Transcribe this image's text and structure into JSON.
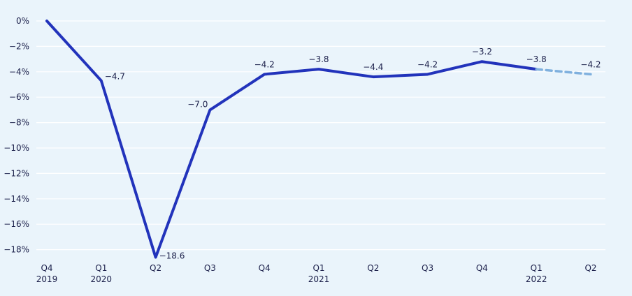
{
  "chart_data": {
    "type": "line",
    "title": "",
    "xlabel": "",
    "ylabel": "",
    "ylim": [
      -19,
      0
    ],
    "y_ticks": [
      0,
      -2,
      -4,
      -6,
      -8,
      -10,
      -12,
      -14,
      -16,
      -18
    ],
    "y_tick_labels": [
      "0%",
      "−2%",
      "−4%",
      "−6%",
      "−8%",
      "−10%",
      "−12%",
      "−14%",
      "−16%",
      "−18%"
    ],
    "categories": [
      {
        "q": "Q4",
        "year": "2019"
      },
      {
        "q": "Q1",
        "year": "2020"
      },
      {
        "q": "Q2",
        "year": ""
      },
      {
        "q": "Q3",
        "year": ""
      },
      {
        "q": "Q4",
        "year": ""
      },
      {
        "q": "Q1",
        "year": "2021"
      },
      {
        "q": "Q2",
        "year": ""
      },
      {
        "q": "Q3",
        "year": ""
      },
      {
        "q": "Q4",
        "year": ""
      },
      {
        "q": "Q1",
        "year": "2022"
      },
      {
        "q": "Q2",
        "year": ""
      }
    ],
    "series": [
      {
        "style": "solid",
        "color": "#2233bb",
        "values": [
          0,
          -4.7,
          -18.6,
          -7.0,
          -4.2,
          -3.8,
          -4.4,
          -4.2,
          -3.2,
          -3.8,
          null
        ]
      },
      {
        "style": "dashed",
        "color": "#7fb0de",
        "values": [
          null,
          null,
          null,
          null,
          null,
          null,
          null,
          null,
          null,
          -3.8,
          -4.2
        ]
      }
    ],
    "data_labels": [
      {
        "index": 1,
        "text": "−4.7"
      },
      {
        "index": 2,
        "text": "−18.6"
      },
      {
        "index": 3,
        "text": "−7.0"
      },
      {
        "index": 4,
        "text": "−4.2"
      },
      {
        "index": 5,
        "text": "−3.8"
      },
      {
        "index": 6,
        "text": "−4.4"
      },
      {
        "index": 7,
        "text": "−4.2"
      },
      {
        "index": 8,
        "text": "−3.2"
      },
      {
        "index": 9,
        "text": "−3.8"
      },
      {
        "index": 10,
        "text": "−4.2"
      }
    ],
    "grid": true
  }
}
